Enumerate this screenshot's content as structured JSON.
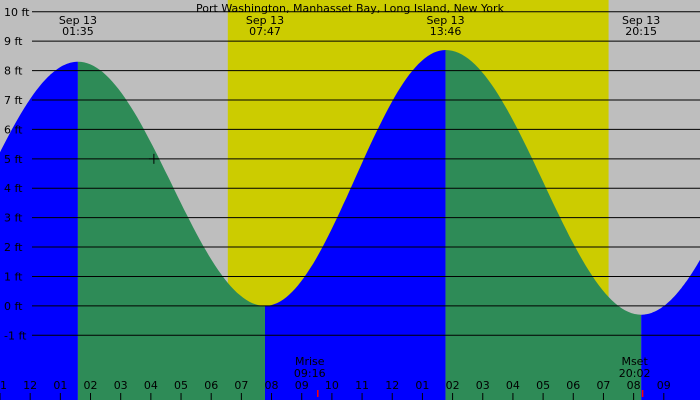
{
  "chart_data": {
    "type": "area",
    "title": "Port Washington, Manhasset Bay, Long Island, New York",
    "time_range_hours": [
      -1.0,
      22.2
    ],
    "y_range_ft": [
      -3.2,
      10.4
    ],
    "y_ticks": [
      {
        "v": 10,
        "label": "10 ft"
      },
      {
        "v": 9,
        "label": "9 ft"
      },
      {
        "v": 8,
        "label": "8 ft"
      },
      {
        "v": 7,
        "label": "7 ft"
      },
      {
        "v": 6,
        "label": "6 ft"
      },
      {
        "v": 5,
        "label": "5 ft"
      },
      {
        "v": 4,
        "label": "4 ft"
      },
      {
        "v": 3,
        "label": "3 ft"
      },
      {
        "v": 2,
        "label": "2 ft"
      },
      {
        "v": 1,
        "label": "1 ft"
      },
      {
        "v": 0,
        "label": "0 ft"
      },
      {
        "v": -1,
        "label": "-1 ft"
      }
    ],
    "x_ticks": [
      {
        "t": -1,
        "label": "11"
      },
      {
        "t": 0,
        "label": "12"
      },
      {
        "t": 1,
        "label": "01"
      },
      {
        "t": 2,
        "label": "02"
      },
      {
        "t": 3,
        "label": "03"
      },
      {
        "t": 4,
        "label": "04"
      },
      {
        "t": 5,
        "label": "05"
      },
      {
        "t": 6,
        "label": "06"
      },
      {
        "t": 7,
        "label": "07"
      },
      {
        "t": 8,
        "label": "08"
      },
      {
        "t": 9,
        "label": "09"
      },
      {
        "t": 10,
        "label": "10"
      },
      {
        "t": 11,
        "label": "11"
      },
      {
        "t": 12,
        "label": "12"
      },
      {
        "t": 13,
        "label": "01"
      },
      {
        "t": 14,
        "label": "02"
      },
      {
        "t": 15,
        "label": "03"
      },
      {
        "t": 16,
        "label": "04"
      },
      {
        "t": 17,
        "label": "05"
      },
      {
        "t": 18,
        "label": "06"
      },
      {
        "t": 19,
        "label": "07"
      },
      {
        "t": 20,
        "label": "08"
      },
      {
        "t": 21,
        "label": "09"
      }
    ],
    "extremes": [
      {
        "t": 1.583,
        "level": 8.3,
        "type": "high"
      },
      {
        "t": 7.783,
        "level": 0.0,
        "type": "low"
      },
      {
        "t": 13.767,
        "level": 8.7,
        "type": "high"
      },
      {
        "t": 20.25,
        "level": -0.3,
        "type": "low"
      }
    ],
    "top_labels": [
      {
        "t": 1.583,
        "date": "Sep 13",
        "time": "01:35"
      },
      {
        "t": 7.783,
        "date": "Sep 13",
        "time": "07:47"
      },
      {
        "t": 13.767,
        "date": "Sep 13",
        "time": "13:46"
      },
      {
        "t": 20.25,
        "date": "Sep 13",
        "time": "20:15"
      }
    ],
    "daylight": [
      6.55,
      19.17
    ],
    "moon_events": [
      {
        "t": 9.267,
        "label": "Mrise",
        "time": "09:16"
      },
      {
        "t": 20.033,
        "label": "Mset",
        "time": "20:02"
      }
    ],
    "cursor": {
      "t": 4.1,
      "level": 5.0
    },
    "colors": {
      "night": "#bebebe",
      "daylight": "#cccc00",
      "rising": "#0000ff",
      "falling": "#2e8b57",
      "gridline": "#000000",
      "moon_tick": "#ff0000"
    }
  }
}
